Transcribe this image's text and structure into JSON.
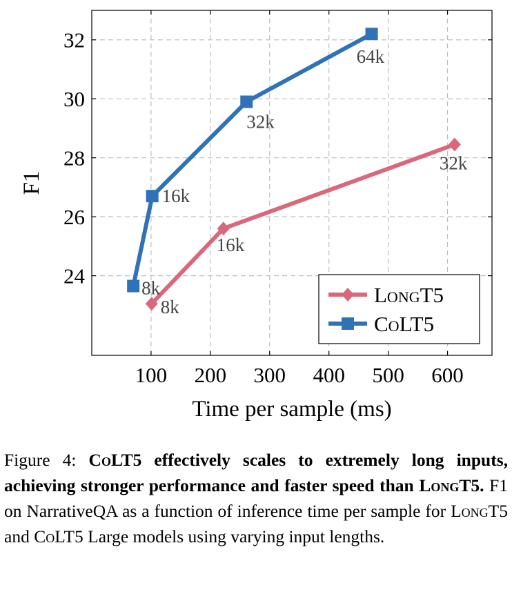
{
  "chart_data": {
    "type": "line",
    "xlabel": "Time per sample (ms)",
    "ylabel": "F1",
    "xlim": [
      0,
      675
    ],
    "ylim": [
      21.3,
      33.0
    ],
    "xticks": [
      100,
      200,
      300,
      400,
      500,
      600
    ],
    "yticks": [
      24,
      26,
      28,
      30,
      32
    ],
    "grid": true,
    "legend_position": "bottom-right",
    "series": [
      {
        "name": "LongT5",
        "color": "#d9697a",
        "marker": "diamond",
        "points": [
          {
            "x": 101,
            "y": 23.05,
            "label": "8k"
          },
          {
            "x": 222,
            "y": 25.6,
            "label": "16k"
          },
          {
            "x": 612,
            "y": 28.45,
            "label": "32k"
          }
        ]
      },
      {
        "name": "CoLT5",
        "color": "#2f72b8",
        "marker": "square",
        "points": [
          {
            "x": 70,
            "y": 23.65,
            "label": "8k"
          },
          {
            "x": 102,
            "y": 26.7,
            "label": "16k"
          },
          {
            "x": 261,
            "y": 29.9,
            "label": "32k"
          },
          {
            "x": 472,
            "y": 32.2,
            "label": "64k"
          }
        ]
      }
    ]
  },
  "caption": {
    "figure_label": "Figure 4:",
    "title_part1": "CoLT5",
    "title_part2": " effectively scales to extremely long inputs, achieving stronger performance and faster speed than ",
    "title_part3": "LongT5",
    "title_part4": ".",
    "body_part1": " F1 on NarrativeQA as a function of inference time per sample for ",
    "body_part2": "LongT5",
    "body_part3": " and ",
    "body_part4": "CoLT5",
    "body_part5": " Large models using varying input lengths."
  }
}
